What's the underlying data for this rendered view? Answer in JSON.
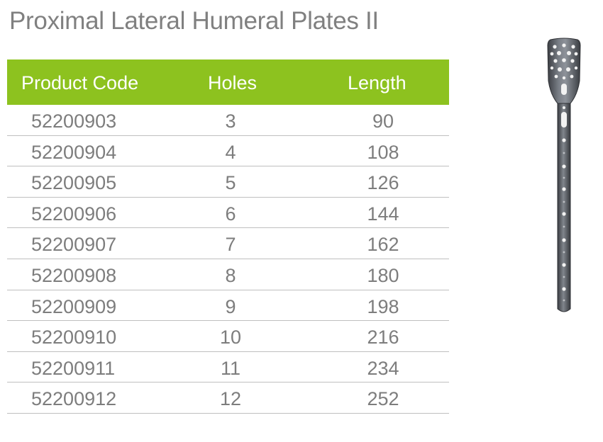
{
  "title": "Proximal Lateral Humeral Plates II",
  "table": {
    "headers": {
      "code": "Product Code",
      "holes": "Holes",
      "length": "Length"
    },
    "rows": [
      {
        "code": "52200903",
        "holes": "3",
        "length": "90"
      },
      {
        "code": "52200904",
        "holes": "4",
        "length": "108"
      },
      {
        "code": "52200905",
        "holes": "5",
        "length": "126"
      },
      {
        "code": "52200906",
        "holes": "6",
        "length": "144"
      },
      {
        "code": "52200907",
        "holes": "7",
        "length": "162"
      },
      {
        "code": "52200908",
        "holes": "8",
        "length": "180"
      },
      {
        "code": "52200909",
        "holes": "9",
        "length": "198"
      },
      {
        "code": "52200910",
        "holes": "10",
        "length": "216"
      },
      {
        "code": "52200911",
        "holes": "11",
        "length": "234"
      },
      {
        "code": "52200912",
        "holes": "12",
        "length": "252"
      }
    ]
  },
  "colors": {
    "header_bg": "#8dc21f",
    "header_text": "#ffffff",
    "body_text": "#7d7d7d",
    "rule": "#bfbfbf"
  },
  "image": {
    "icon": "humeral-plate-image"
  }
}
